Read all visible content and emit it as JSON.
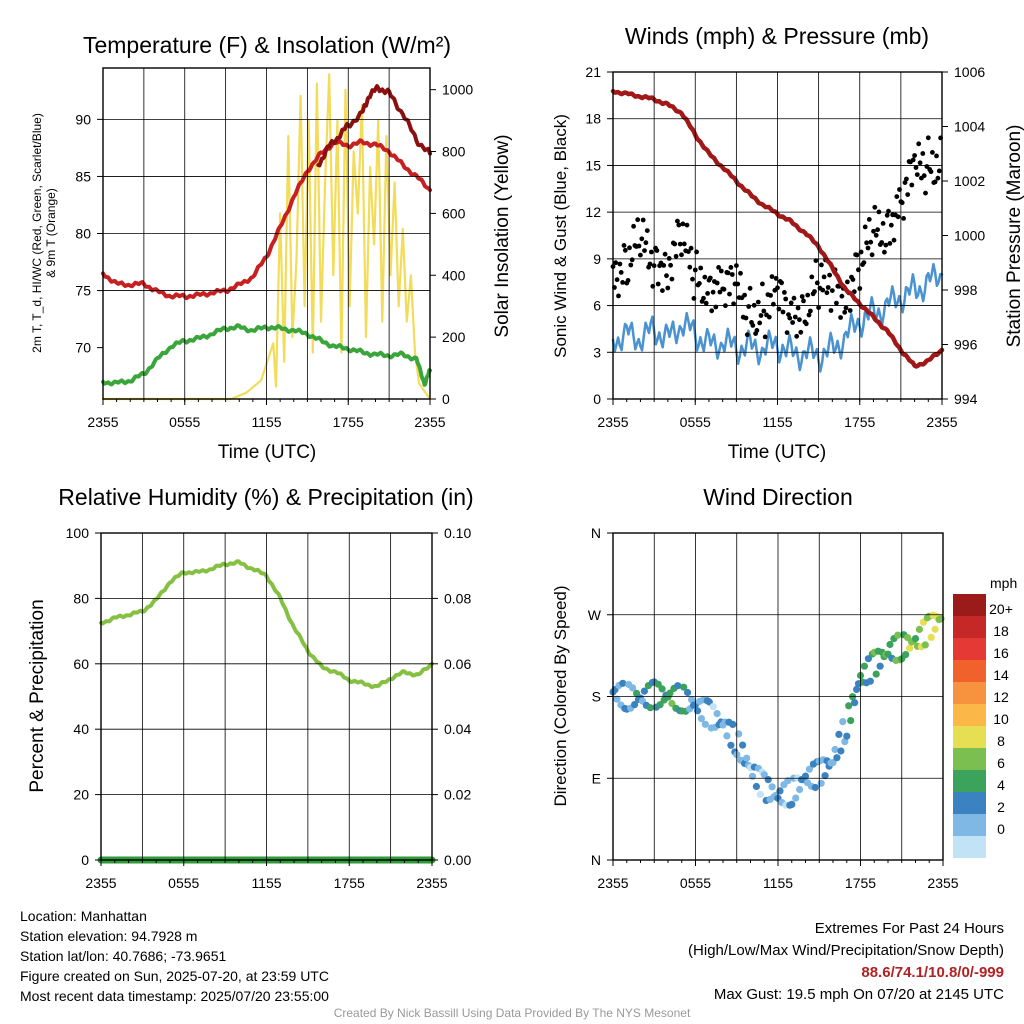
{
  "colors": {
    "temp": "#c62020",
    "heat_index": "#8b1010",
    "dewpoint": "#3aa53a",
    "solar": "#f3dc5a",
    "wind": "#4a93d0",
    "gust": "#000000",
    "pressure": "#a01818",
    "rh": "#86c043",
    "precip": "#2e9a3a"
  },
  "chart_data": [
    {
      "type": "line",
      "title": "Temperature (F) & Insolation (W/m²)",
      "xlabel": "Time (UTC)",
      "ylabel": "2m T, Td, HI/WC (Red, Green, Scarlet/Blue) & 9m T (Orange)",
      "ylabel_lines": [
        "2m T, T_d, HI/WC (Red, Green, Scarlet/Blue)",
        "& 9m T (Orange)"
      ],
      "y2label": "Solar Insolation (Yellow)",
      "xticks": [
        "2355",
        "0555",
        "1155",
        "1755",
        "2355"
      ],
      "yticks": [
        "70",
        "75",
        "80",
        "85",
        "90"
      ],
      "y2ticks": [
        "0",
        "200",
        "400",
        "600",
        "800",
        "1000"
      ],
      "ylim": [
        65.5,
        94.5
      ],
      "y2lim": [
        0,
        1070
      ],
      "xlim": [
        0,
        24
      ],
      "series": [
        {
          "key": "temp",
          "values_x": [
            0,
            1,
            2,
            3,
            4,
            5,
            6,
            7,
            8,
            9,
            10,
            11,
            12,
            13,
            14,
            15,
            16,
            17,
            18,
            19,
            20,
            21,
            22,
            23,
            24
          ],
          "values": [
            76.5,
            75.6,
            75.5,
            75.6,
            74.9,
            74.5,
            74.5,
            74.6,
            74.8,
            75.0,
            75.5,
            76.2,
            78.0,
            80.5,
            83.2,
            85.5,
            87.0,
            88.0,
            87.7,
            88.0,
            87.8,
            87.2,
            86.0,
            85.0,
            83.8
          ]
        },
        {
          "key": "heat_index",
          "values_x": [
            15.8,
            16.5,
            17.3,
            18.0,
            19.0,
            19.5,
            20.2,
            21.0,
            22.0,
            23.0,
            24.0
          ],
          "values": [
            86.0,
            87.5,
            88.5,
            89.5,
            90.5,
            92.0,
            92.8,
            92.3,
            90.5,
            88.2,
            87.0
          ]
        },
        {
          "key": "dewpoint",
          "values_x": [
            0,
            1,
            2,
            3,
            4,
            5,
            6,
            7,
            8,
            9,
            10,
            11,
            12,
            13,
            14,
            15,
            16,
            17,
            18,
            19,
            20,
            21,
            22,
            23,
            23.6,
            24
          ],
          "values": [
            67.0,
            66.9,
            67.1,
            67.7,
            69.0,
            70.1,
            70.6,
            70.8,
            71.2,
            71.7,
            71.8,
            71.5,
            71.8,
            71.7,
            71.5,
            71.2,
            70.6,
            70.1,
            69.9,
            69.6,
            69.4,
            69.3,
            69.4,
            69.0,
            66.8,
            68.0
          ]
        },
        {
          "key": "solar",
          "axis": "y2",
          "values_x": [
            0,
            9.4,
            10.5,
            11.6,
            12.5,
            12.7,
            13.0,
            13.3,
            13.6,
            13.9,
            14.2,
            14.5,
            14.8,
            15.1,
            15.4,
            15.7,
            16.0,
            16.3,
            16.6,
            16.9,
            17.2,
            17.5,
            17.8,
            18.1,
            18.4,
            18.7,
            19.0,
            19.3,
            19.6,
            19.9,
            20.2,
            20.5,
            20.8,
            21.1,
            21.4,
            21.7,
            22.0,
            22.3,
            22.6,
            22.9,
            23.2,
            24
          ],
          "values": [
            0,
            0,
            20,
            60,
            180,
            40,
            600,
            120,
            850,
            200,
            450,
            980,
            300,
            900,
            150,
            1020,
            250,
            700,
            1050,
            400,
            900,
            150,
            1000,
            300,
            800,
            600,
            950,
            200,
            750,
            500,
            900,
            250,
            850,
            400,
            700,
            300,
            550,
            250,
            400,
            150,
            50,
            0
          ]
        }
      ]
    },
    {
      "type": "line",
      "title": "Winds (mph) & Pressure (mb)",
      "xlabel": "Time (UTC)",
      "ylabel": "Sonic Wind & Gust (Blue, Black)",
      "y2label": "Station Pressure (Maroon)",
      "xticks": [
        "2355",
        "0555",
        "1155",
        "1755",
        "2355"
      ],
      "yticks": [
        "0",
        "3",
        "6",
        "9",
        "12",
        "15",
        "18",
        "21"
      ],
      "y2ticks": [
        "994",
        "996",
        "998",
        "1000",
        "1002",
        "1004",
        "1006"
      ],
      "ylim": [
        0,
        21
      ],
      "y2lim": [
        994,
        1006
      ],
      "xlim": [
        0,
        24
      ],
      "series": [
        {
          "key": "wind",
          "values_x": [
            0,
            1,
            2,
            3,
            4,
            5,
            6,
            7,
            8,
            9,
            10,
            11,
            12,
            13,
            14,
            15,
            16,
            17,
            18,
            19,
            20,
            21,
            22,
            23,
            24
          ],
          "values": [
            3.8,
            4.2,
            3.8,
            4.5,
            3.9,
            4.8,
            4.2,
            3.5,
            3.6,
            3.3,
            3.4,
            3.2,
            3.5,
            3.0,
            2.9,
            2.8,
            3.2,
            4.0,
            5.0,
            5.5,
            6.0,
            6.5,
            7.0,
            7.5,
            8.0
          ]
        },
        {
          "key": "gust",
          "values_x": [
            0,
            1,
            2,
            3,
            4,
            5,
            6,
            7,
            8,
            9,
            10,
            11,
            12,
            13,
            14,
            15,
            16,
            17,
            18,
            19,
            20,
            21,
            22,
            23,
            24
          ],
          "values": [
            8.5,
            9.0,
            9.5,
            9.0,
            9.2,
            10.0,
            7.5,
            8.0,
            7.0,
            6.5,
            6.0,
            5.8,
            6.0,
            5.5,
            6.5,
            6.8,
            7.0,
            7.5,
            8.5,
            10.0,
            11.5,
            13.0,
            14.0,
            15.0,
            16.0
          ]
        },
        {
          "key": "pressure",
          "axis": "y2",
          "values_x": [
            0,
            1,
            2,
            3,
            4,
            5,
            6,
            7,
            8,
            9,
            10,
            11,
            12,
            13,
            14,
            15,
            16,
            17,
            18,
            19,
            20,
            21,
            22,
            23,
            24
          ],
          "values": [
            1005.3,
            1005.2,
            1005.1,
            1005.0,
            1004.8,
            1004.5,
            1003.7,
            1003.0,
            1002.5,
            1002.0,
            1001.5,
            1001.1,
            1000.8,
            1000.5,
            1000.1,
            999.6,
            998.8,
            998.0,
            997.5,
            997.0,
            996.5,
            995.8,
            995.2,
            995.4,
            995.8
          ]
        }
      ]
    },
    {
      "type": "line",
      "title": "Relative Humidity (%) & Precipitation (in)",
      "ylabel": "Percent & Precipitation",
      "xticks": [
        "2355",
        "0555",
        "1155",
        "1755",
        "2355"
      ],
      "yticks": [
        "0",
        "20",
        "40",
        "60",
        "80",
        "100"
      ],
      "y2ticks": [
        "0.00",
        "0.02",
        "0.04",
        "0.06",
        "0.08",
        "0.10"
      ],
      "ylim": [
        0,
        100
      ],
      "y2lim": [
        0,
        0.1
      ],
      "xlim": [
        0,
        24
      ],
      "series": [
        {
          "key": "rh",
          "values_x": [
            0,
            1,
            2,
            3,
            4,
            5,
            6,
            7,
            8,
            9,
            10,
            11,
            12,
            13,
            14,
            15,
            16,
            17,
            18,
            19,
            20,
            21,
            22,
            23,
            24
          ],
          "values": [
            72.5,
            74.0,
            75.0,
            76.0,
            79.5,
            85.0,
            88.0,
            88.0,
            89.0,
            90.5,
            91.0,
            89.0,
            87.0,
            80.0,
            71.0,
            64.0,
            59.0,
            57.5,
            55.0,
            54.0,
            53.0,
            55.5,
            57.5,
            56.5,
            60.0
          ]
        },
        {
          "key": "precip",
          "axis": "y2",
          "values_x": [
            0,
            24
          ],
          "values": [
            0,
            0
          ]
        }
      ]
    },
    {
      "type": "scatter",
      "title": "Wind Direction",
      "ylabel": "Direction (Colored By Speed)",
      "xticks": [
        "2355",
        "0555",
        "1155",
        "1755",
        "2355"
      ],
      "yticks": [
        "N",
        "E",
        "S",
        "W",
        "N"
      ],
      "ylim": [
        0,
        360
      ],
      "xlim": [
        0,
        24
      ],
      "colorbar": {
        "unit": "mph",
        "labels": [
          "20+",
          "18",
          "16",
          "14",
          "12",
          "10",
          "8",
          "6",
          "4",
          "2",
          "0"
        ],
        "colors": [
          "#9b1b1b",
          "#c62828",
          "#e53935",
          "#f0612c",
          "#f7933f",
          "#fbb848",
          "#e7df53",
          "#7bbf51",
          "#3ba35b",
          "#3a82c0",
          "#7fb8e4",
          "#c2e3f6"
        ]
      },
      "series": [
        {
          "key": "direction",
          "values_x": [
            0,
            1,
            2,
            3,
            4,
            5,
            6,
            7,
            8,
            9,
            10,
            11,
            12,
            13,
            14,
            15,
            16,
            17,
            18,
            19,
            20,
            21,
            22,
            23,
            24
          ],
          "values": [
            185,
            180,
            178,
            182,
            180,
            178,
            170,
            160,
            150,
            130,
            100,
            80,
            70,
            75,
            90,
            95,
            110,
            150,
            200,
            215,
            230,
            235,
            240,
            255,
            270
          ],
          "speeds": [
            3,
            3,
            4,
            5,
            6,
            5,
            3,
            2,
            3,
            3,
            2,
            2,
            3,
            2,
            3,
            3,
            3,
            4,
            5,
            6,
            6,
            7,
            8,
            9,
            10
          ]
        }
      ]
    }
  ],
  "info": {
    "location": "Location: Manhattan",
    "elevation": "Station elevation: 94.7928 m",
    "latlon": "Station lat/lon: 40.7686; -73.9651",
    "created": "Figure created on Sun, 2025-07-20, at 23:59 UTC",
    "recent": "Most recent data timestamp: 2025/07/20 23:55:00",
    "extremes_title": "Extremes For Past 24 Hours",
    "extremes_desc": "(High/Low/Max Wind/Precipitation/Snow Depth)",
    "extremes_values": "88.6/74.1/10.8/0/-999",
    "max_gust": "Max Gust: 19.5 mph On 07/20 at 2145 UTC",
    "credit": "Created By Nick Bassill Using Data Provided By The NYS Mesonet"
  }
}
